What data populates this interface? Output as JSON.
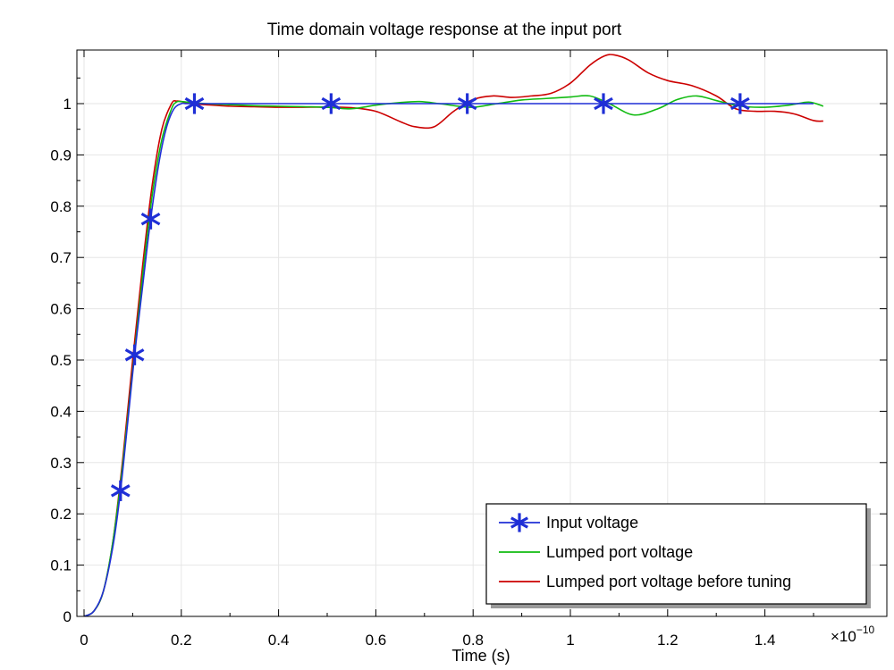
{
  "chart_data": {
    "type": "line",
    "title": "Time domain voltage response at the input port",
    "xlabel": "Time (s)",
    "ylabel": "",
    "x_multiplier": "×10",
    "x_multiplier_exp": "−10",
    "xlim": [
      0,
      1.5
    ],
    "ylim": [
      -0.005,
      1.1
    ],
    "x_ticks": [
      0,
      0.2,
      0.4,
      0.6,
      0.8,
      1,
      1.2,
      1.4
    ],
    "x_tick_labels": [
      "0",
      "0.2",
      "0.4",
      "0.6",
      "0.8",
      "1",
      "1.2",
      "1.4"
    ],
    "y_ticks": [
      0,
      0.1,
      0.2,
      0.3,
      0.4,
      0.5,
      0.6,
      0.7,
      0.8,
      0.9,
      1
    ],
    "y_tick_labels": [
      "0",
      "0.1",
      "0.2",
      "0.3",
      "0.4",
      "0.5",
      "0.6",
      "0.7",
      "0.8",
      "0.9",
      "1"
    ],
    "grid": true,
    "legend_position": "bottom-right",
    "series": [
      {
        "name": "Input voltage",
        "color": "#1f2fd6",
        "marker": "asterisk",
        "x": [
          0,
          0.02,
          0.04,
          0.06,
          0.075,
          0.09,
          0.104,
          0.12,
          0.137,
          0.155,
          0.17,
          0.185,
          0.2,
          0.21,
          0.23,
          0.3,
          0.4,
          0.5,
          0.6,
          0.7,
          0.8,
          0.9,
          1.0,
          1.1,
          1.2,
          1.3,
          1.4,
          1.5
        ],
        "y": [
          0,
          0.01,
          0.05,
          0.14,
          0.245,
          0.38,
          0.51,
          0.64,
          0.775,
          0.89,
          0.955,
          0.99,
          1.0,
          1.0,
          1.0,
          1.0,
          1.0,
          1.0,
          1.0,
          1.0,
          1.0,
          1.0,
          1.0,
          1.0,
          1.0,
          1.0,
          1.0,
          1.0
        ],
        "marker_x": [
          0.075,
          0.104,
          0.137,
          0.227,
          0.508,
          0.788,
          1.068,
          1.349
        ],
        "marker_y": [
          0.245,
          0.51,
          0.775,
          1.0,
          1.0,
          1.0,
          1.0,
          1.0
        ]
      },
      {
        "name": "Lumped port voltage",
        "color": "#11bb11",
        "x": [
          0,
          0.02,
          0.04,
          0.06,
          0.08,
          0.1,
          0.12,
          0.14,
          0.16,
          0.18,
          0.19,
          0.2,
          0.22,
          0.25,
          0.3,
          0.35,
          0.4,
          0.45,
          0.5,
          0.55,
          0.6,
          0.65,
          0.69,
          0.73,
          0.77,
          0.8,
          0.85,
          0.9,
          0.95,
          1.0,
          1.04,
          1.08,
          1.13,
          1.18,
          1.22,
          1.26,
          1.3,
          1.35,
          1.4,
          1.45,
          1.49,
          1.52
        ],
        "y": [
          0,
          0.01,
          0.05,
          0.15,
          0.3,
          0.48,
          0.66,
          0.82,
          0.93,
          0.99,
          1.003,
          1.004,
          1.002,
          1.0,
          0.998,
          0.996,
          0.995,
          0.994,
          0.993,
          0.99,
          0.997,
          1.002,
          1.004,
          1.0,
          0.995,
          0.993,
          1.0,
          1.007,
          1.01,
          1.013,
          1.015,
          1.0,
          0.978,
          0.99,
          1.008,
          1.015,
          1.006,
          0.995,
          0.993,
          0.997,
          1.003,
          0.995
        ]
      },
      {
        "name": "Lumped port voltage before tuning",
        "color": "#cc0000",
        "x": [
          0,
          0.02,
          0.04,
          0.06,
          0.08,
          0.1,
          0.12,
          0.14,
          0.16,
          0.18,
          0.19,
          0.2,
          0.22,
          0.25,
          0.3,
          0.35,
          0.4,
          0.45,
          0.5,
          0.55,
          0.6,
          0.65,
          0.68,
          0.72,
          0.76,
          0.8,
          0.84,
          0.88,
          0.92,
          0.96,
          1.0,
          1.04,
          1.07,
          1.09,
          1.12,
          1.16,
          1.2,
          1.25,
          1.3,
          1.34,
          1.38,
          1.42,
          1.46,
          1.5,
          1.52
        ],
        "y": [
          0,
          0.01,
          0.05,
          0.15,
          0.31,
          0.5,
          0.68,
          0.84,
          0.95,
          1.0,
          1.005,
          1.004,
          1.0,
          0.998,
          0.995,
          0.994,
          0.993,
          0.993,
          0.993,
          0.992,
          0.985,
          0.965,
          0.955,
          0.955,
          0.985,
          1.008,
          1.015,
          1.012,
          1.015,
          1.02,
          1.04,
          1.075,
          1.093,
          1.095,
          1.085,
          1.06,
          1.045,
          1.035,
          1.015,
          0.99,
          0.985,
          0.985,
          0.98,
          0.967,
          0.966
        ]
      }
    ]
  }
}
